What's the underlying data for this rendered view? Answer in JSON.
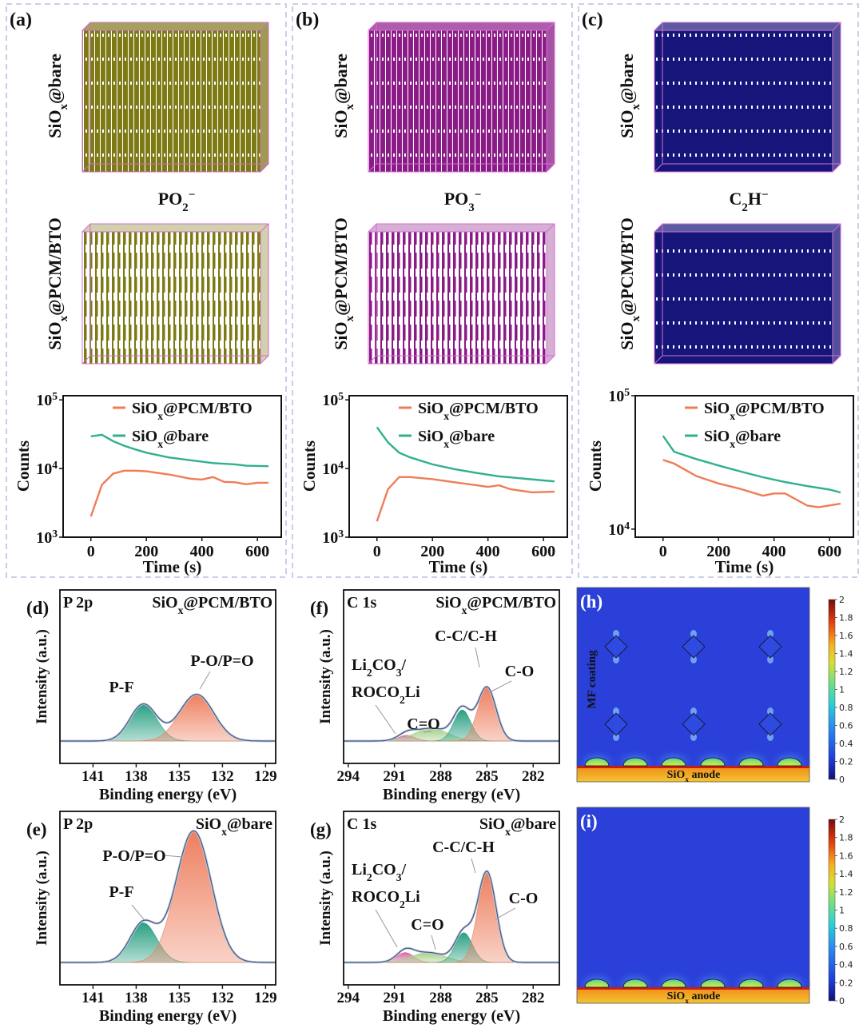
{
  "top_panels": [
    {
      "label": "(a)",
      "sample_top": [
        {
          "t": "SiO"
        },
        {
          "t": "x",
          "s": "sub"
        },
        {
          "t": "@bare"
        }
      ],
      "sample_bottom": [
        {
          "t": "SiO"
        },
        {
          "t": "x",
          "s": "sub"
        },
        {
          "t": "@PCM/BTO"
        }
      ],
      "ion": [
        {
          "t": "PO"
        },
        {
          "t": "2",
          "s": "sub"
        },
        {
          "t": "−",
          "s": "sup"
        }
      ],
      "color": "#7d7a14"
    },
    {
      "label": "(b)",
      "sample_top": [
        {
          "t": "SiO"
        },
        {
          "t": "x",
          "s": "sub"
        },
        {
          "t": "@bare"
        }
      ],
      "sample_bottom": [
        {
          "t": "SiO"
        },
        {
          "t": "x",
          "s": "sub"
        },
        {
          "t": "@PCM/BTO"
        }
      ],
      "ion": [
        {
          "t": "PO"
        },
        {
          "t": "3",
          "s": "sub"
        },
        {
          "t": "−",
          "s": "sup"
        }
      ],
      "color": "#8a1a86"
    },
    {
      "label": "(c)",
      "sample_top": [
        {
          "t": "SiO"
        },
        {
          "t": "x",
          "s": "sub"
        },
        {
          "t": "@bare"
        }
      ],
      "sample_bottom": [
        {
          "t": "SiO"
        },
        {
          "t": "x",
          "s": "sub"
        },
        {
          "t": "@PCM/BTO"
        }
      ],
      "ion": [
        {
          "t": "C"
        },
        {
          "t": "2",
          "s": "sub"
        },
        {
          "t": "H"
        },
        {
          "t": "−",
          "s": "sup"
        }
      ],
      "color": "#16167a"
    }
  ],
  "chart_data": [
    {
      "type": "line",
      "panel": "(a)",
      "xlabel": "Time (s)",
      "ylabel": "Counts",
      "yscale": "log",
      "xlim": [
        -100,
        686
      ],
      "ylim": [
        1000,
        115000
      ],
      "xticks": [
        "0",
        "200",
        "400",
        "600"
      ],
      "yticks": [
        {
          "base": "10",
          "exp": "3",
          "value": 1000
        },
        {
          "base": "10",
          "exp": "4",
          "value": 10000
        },
        {
          "base": "10",
          "exp": "5",
          "value": 100000
        }
      ],
      "series": [
        {
          "name": [
            {
              "t": "SiO"
            },
            {
              "t": "x",
              "s": "sub"
            },
            {
              "t": "@PCM/BTO"
            }
          ],
          "color": "#ef7d57",
          "x": [
            0,
            40,
            80,
            120,
            160,
            200,
            280,
            360,
            400,
            440,
            480,
            520,
            560,
            600,
            640
          ],
          "y": [
            2000,
            5800,
            8400,
            9300,
            9300,
            9100,
            8200,
            7100,
            6900,
            7500,
            6400,
            6300,
            5900,
            6200,
            6200
          ]
        },
        {
          "name": [
            {
              "t": "SiO"
            },
            {
              "t": "x",
              "s": "sub"
            },
            {
              "t": "@bare"
            }
          ],
          "color": "#2fb08f",
          "x": [
            0,
            40,
            80,
            120,
            160,
            200,
            280,
            360,
            440,
            520,
            560,
            640
          ],
          "y": [
            29500,
            31000,
            25000,
            21500,
            19000,
            17000,
            14500,
            13200,
            12000,
            11500,
            11000,
            10800
          ]
        }
      ]
    },
    {
      "type": "line",
      "panel": "(b)",
      "xlabel": "Time (s)",
      "ylabel": "Counts",
      "yscale": "log",
      "xlim": [
        -100,
        686
      ],
      "ylim": [
        1000,
        115000
      ],
      "xticks": [
        "0",
        "200",
        "400",
        "600"
      ],
      "yticks": [
        {
          "base": "10",
          "exp": "3",
          "value": 1000
        },
        {
          "base": "10",
          "exp": "4",
          "value": 10000
        },
        {
          "base": "10",
          "exp": "5",
          "value": 100000
        }
      ],
      "series": [
        {
          "name": [
            {
              "t": "SiO"
            },
            {
              "t": "x",
              "s": "sub"
            },
            {
              "t": "@PCM/BTO"
            }
          ],
          "color": "#ef7d57",
          "x": [
            0,
            40,
            80,
            120,
            200,
            280,
            360,
            400,
            440,
            480,
            560,
            640
          ],
          "y": [
            1700,
            5000,
            7500,
            7500,
            7000,
            6300,
            5700,
            5400,
            5700,
            5000,
            4500,
            4600
          ]
        },
        {
          "name": [
            {
              "t": "SiO"
            },
            {
              "t": "x",
              "s": "sub"
            },
            {
              "t": "@bare"
            }
          ],
          "color": "#2fb08f",
          "x": [
            0,
            40,
            80,
            120,
            200,
            280,
            360,
            440,
            520,
            600,
            640
          ],
          "y": [
            40000,
            24000,
            17000,
            14500,
            11500,
            9800,
            8600,
            7700,
            7200,
            6700,
            6500
          ]
        }
      ]
    },
    {
      "type": "line",
      "panel": "(c)",
      "xlabel": "Time (s)",
      "ylabel": "Counts",
      "yscale": "log",
      "xlim": [
        -100,
        686
      ],
      "ylim": [
        8700,
        100000
      ],
      "xticks": [
        "0",
        "200",
        "400",
        "600"
      ],
      "yticks": [
        {
          "base": "10",
          "exp": "4",
          "value": 10000
        },
        {
          "base": "10",
          "exp": "5",
          "value": 100000
        }
      ],
      "series": [
        {
          "name": [
            {
              "t": "SiO"
            },
            {
              "t": "x",
              "s": "sub"
            },
            {
              "t": "@PCM/BTO"
            }
          ],
          "color": "#ef7d57",
          "x": [
            0,
            40,
            120,
            200,
            280,
            360,
            400,
            440,
            520,
            560,
            640
          ],
          "y": [
            33000,
            31000,
            25000,
            22000,
            20000,
            17800,
            18500,
            18500,
            15000,
            14600,
            15500
          ]
        },
        {
          "name": [
            {
              "t": "SiO"
            },
            {
              "t": "x",
              "s": "sub"
            },
            {
              "t": "@bare"
            }
          ],
          "color": "#2fb08f",
          "x": [
            0,
            40,
            120,
            200,
            280,
            360,
            440,
            520,
            600,
            640
          ],
          "y": [
            50000,
            38000,
            33500,
            30000,
            27000,
            24500,
            22500,
            21000,
            19800,
            18800
          ]
        }
      ]
    },
    {
      "type": "area",
      "panel": "(d)",
      "title": "P 2p",
      "sample": [
        {
          "t": "SiO"
        },
        {
          "t": "x",
          "s": "sub"
        },
        {
          "t": "@PCM/BTO"
        }
      ],
      "xlabel": "Binding energy (eV)",
      "ylabel": "Intensity (a.u.)",
      "xlim": [
        143.3,
        128.3
      ],
      "xticks": [
        141,
        138,
        135,
        132,
        129
      ],
      "peaks": [
        {
          "label": "P-F",
          "center": 137.5,
          "fwhm": 2.2,
          "height": 0.26,
          "color": "#2aa083"
        },
        {
          "label": "P-O/P=O",
          "center": 133.8,
          "fwhm": 2.8,
          "height": 0.33,
          "color": "#ee7f5f"
        }
      ]
    },
    {
      "type": "area",
      "panel": "(e)",
      "title": "P 2p",
      "sample": [
        {
          "t": "SiO"
        },
        {
          "t": "x",
          "s": "sub"
        },
        {
          "t": "@bare"
        }
      ],
      "xlabel": "Binding energy (eV)",
      "ylabel": "Intensity (a.u.)",
      "xlim": [
        143.3,
        128.3
      ],
      "xticks": [
        141,
        138,
        135,
        132,
        129
      ],
      "peaks": [
        {
          "label": "P-F",
          "center": 137.5,
          "fwhm": 2.2,
          "height": 0.28,
          "color": "#2aa083"
        },
        {
          "label": "P-O/P=O",
          "center": 134.0,
          "fwhm": 2.9,
          "height": 0.93,
          "color": "#ee7f5f"
        }
      ]
    },
    {
      "type": "area",
      "panel": "(f)",
      "title": "C 1s",
      "sample": [
        {
          "t": "SiO"
        },
        {
          "t": "x",
          "s": "sub"
        },
        {
          "t": "@PCM/BTO"
        }
      ],
      "xlabel": "Binding energy (eV)",
      "ylabel": "Intensity (a.u.)",
      "xlim": [
        294.3,
        280.3
      ],
      "xticks": [
        294,
        291,
        288,
        285,
        282
      ],
      "peaks": [
        {
          "label": [
            {
              "t": "Li"
            },
            {
              "t": "2",
              "s": "sub"
            },
            {
              "t": "CO"
            },
            {
              "t": "3",
              "s": "sub"
            },
            {
              "t": "/"
            }
          ],
          "label2": [
            {
              "t": "ROCO"
            },
            {
              "t": "2",
              "s": "sub"
            },
            {
              "t": "Li"
            }
          ],
          "center": 290.2,
          "fwhm": 1.3,
          "height": 0.04,
          "color": "#d86aa0"
        },
        {
          "label": "C=O",
          "center": 288.6,
          "fwhm": 2.6,
          "height": 0.09,
          "color": "#a6d08a"
        },
        {
          "label": "C-C/C-H",
          "center": 286.6,
          "fwhm": 1.3,
          "height": 0.22,
          "color": "#2aa083"
        },
        {
          "label": "C-O",
          "center": 285.0,
          "fwhm": 1.4,
          "height": 0.38,
          "color": "#ee7f5f"
        }
      ]
    },
    {
      "type": "area",
      "panel": "(g)",
      "title": "C 1s",
      "sample": [
        {
          "t": "SiO"
        },
        {
          "t": "x",
          "s": "sub"
        },
        {
          "t": "@bare"
        }
      ],
      "xlabel": "Binding energy (eV)",
      "ylabel": "Intensity (a.u.)",
      "xlim": [
        294.3,
        280.3
      ],
      "xticks": [
        294,
        291,
        288,
        285,
        282
      ],
      "peaks": [
        {
          "label": [
            {
              "t": "Li"
            },
            {
              "t": "2",
              "s": "sub"
            },
            {
              "t": "CO"
            },
            {
              "t": "3",
              "s": "sub"
            },
            {
              "t": "/"
            }
          ],
          "label2": [
            {
              "t": "ROCO"
            },
            {
              "t": "2",
              "s": "sub"
            },
            {
              "t": "Li"
            }
          ],
          "center": 290.3,
          "fwhm": 1.3,
          "height": 0.07,
          "color": "#d86aa0"
        },
        {
          "label": "C=O",
          "center": 288.8,
          "fwhm": 2.6,
          "height": 0.07,
          "color": "#a6d08a"
        },
        {
          "label": "C-C/C-H",
          "center": 286.5,
          "fwhm": 1.3,
          "height": 0.21,
          "color": "#2aa083"
        },
        {
          "label": "C-O",
          "center": 285.0,
          "fwhm": 1.4,
          "height": 0.64,
          "color": "#ee7f5f"
        }
      ]
    },
    {
      "type": "heatmap",
      "panel": "(h)",
      "annotation": "MF coating",
      "anode": [
        {
          "t": "SiO"
        },
        {
          "t": "x",
          "s": "sub"
        },
        {
          "t": " anode"
        }
      ],
      "colorbar": {
        "min": 0,
        "max": 2,
        "ticks": [
          "2",
          "1.8",
          "1.6",
          "1.4",
          "1.2",
          "1",
          "0.8",
          "0.6",
          "0.4",
          "0.2",
          "0"
        ]
      },
      "has_coating": true
    },
    {
      "type": "heatmap",
      "panel": "(i)",
      "anode": [
        {
          "t": "SiO"
        },
        {
          "t": "x",
          "s": "sub"
        },
        {
          "t": " anode"
        }
      ],
      "colorbar": {
        "min": 0,
        "max": 2,
        "ticks": [
          "2",
          "1.8",
          "1.6",
          "1.4",
          "1.2",
          "1",
          "0.8",
          "0.6",
          "0.4",
          "0.2",
          "0"
        ]
      },
      "has_coating": false
    }
  ]
}
